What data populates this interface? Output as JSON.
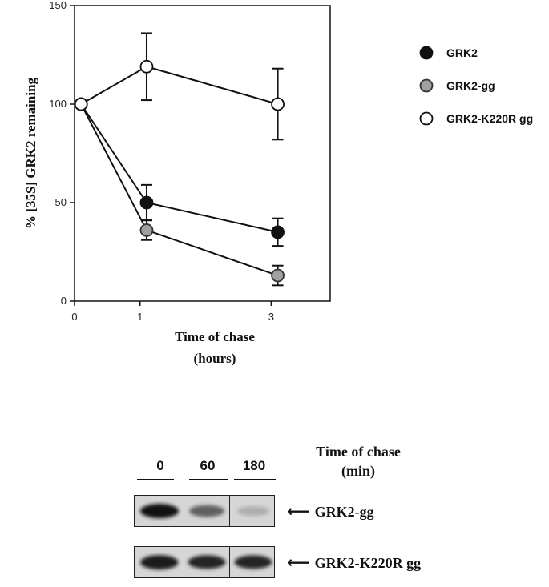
{
  "chart_data": {
    "type": "line",
    "xlabel": [
      "Time of chase",
      "(hours)"
    ],
    "ylabel": "% [35S] GRK2 remaining",
    "ylim": [
      0,
      150
    ],
    "yticks": [
      0,
      50,
      100,
      150
    ],
    "xlim": [
      0,
      3.9
    ],
    "xticks": [
      0,
      1,
      3
    ],
    "x": [
      0.1,
      1.1,
      3.1
    ],
    "legend_position": "right",
    "grid": false,
    "series": [
      {
        "name": "GRK2",
        "marker": "filled-black",
        "values": [
          100,
          50,
          35
        ],
        "err": [
          0,
          9,
          7
        ]
      },
      {
        "name": "GRK2-gg",
        "marker": "filled-gray",
        "values": [
          100,
          36,
          13
        ],
        "err": [
          0,
          5,
          5
        ]
      },
      {
        "name": "GRK2-K220R gg",
        "marker": "open",
        "values": [
          100,
          119,
          100
        ],
        "err": [
          0,
          17,
          18
        ]
      }
    ]
  },
  "blot": {
    "title_line1": "Time of chase",
    "title_line2": "(min)",
    "lanes": [
      "0",
      "60",
      "180"
    ],
    "rows": [
      {
        "label": "GRK2-gg",
        "intensity": [
          1.0,
          0.6,
          0.2
        ]
      },
      {
        "label": "GRK2-K220R gg",
        "intensity": [
          0.95,
          0.9,
          0.9
        ]
      }
    ],
    "arrow_icon": "left-arrow-icon"
  }
}
